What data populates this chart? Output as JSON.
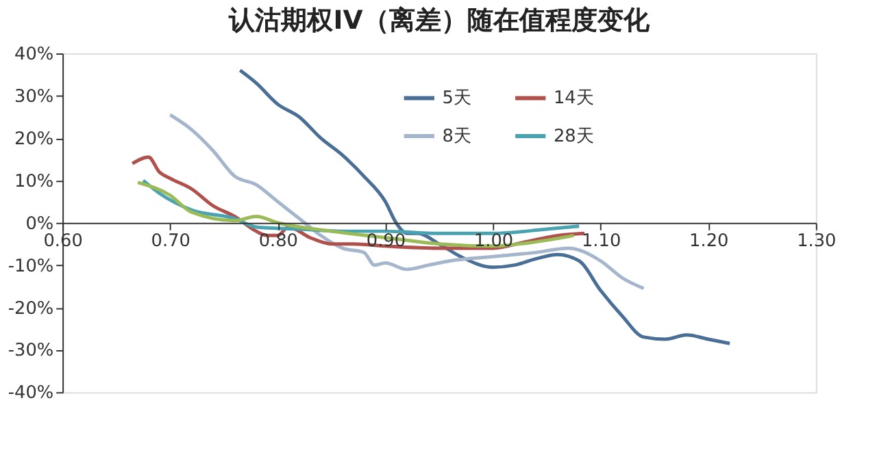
{
  "chart_data": {
    "type": "line",
    "title": "认沽期权IV（离差）随在值程度变化",
    "xlim": [
      0.6,
      1.3
    ],
    "xticks": [
      {
        "value": 0.6,
        "label": "0.60"
      },
      {
        "value": 0.7,
        "label": "0.70"
      },
      {
        "value": 0.8,
        "label": "0.80"
      },
      {
        "value": 0.9,
        "label": "0.90"
      },
      {
        "value": 1.0,
        "label": "1.00"
      },
      {
        "value": 1.1,
        "label": "1.10"
      },
      {
        "value": 1.2,
        "label": "1.20"
      },
      {
        "value": 1.3,
        "label": "1.30"
      }
    ],
    "ylim": [
      -40,
      40
    ],
    "yticks": [
      {
        "value": -40,
        "label": "-40%"
      },
      {
        "value": -30,
        "label": "-30%"
      },
      {
        "value": -20,
        "label": "-20%"
      },
      {
        "value": -10,
        "label": "-10%"
      },
      {
        "value": 0,
        "label": "0%"
      },
      {
        "value": 10,
        "label": "10%"
      },
      {
        "value": 20,
        "label": "20%"
      },
      {
        "value": 30,
        "label": "30%"
      },
      {
        "value": 40,
        "label": "40%"
      }
    ],
    "grid": false,
    "legend": "top",
    "marker": "none",
    "line_style": "solid",
    "series": [
      {
        "name": "5天",
        "color": "#4a6f96",
        "x": [
          0.765,
          0.78,
          0.8,
          0.82,
          0.84,
          0.86,
          0.88,
          0.9,
          0.91,
          0.92,
          0.93,
          0.95,
          0.97,
          1.0,
          1.02,
          1.04,
          1.06,
          1.08,
          1.1,
          1.12,
          1.14,
          1.16,
          1.18,
          1.2,
          1.22
        ],
        "values": [
          36,
          33,
          28,
          25,
          20,
          16,
          11,
          5,
          0,
          -2.5,
          -2.5,
          -5,
          -8,
          -10.5,
          -10,
          -8.5,
          -7.5,
          -9,
          -16,
          -22,
          -27,
          -27.5,
          -26.5,
          -27.5,
          -28.5
        ]
      },
      {
        "name": "8天",
        "color": "#a5b6cc",
        "x": [
          0.7,
          0.72,
          0.74,
          0.76,
          0.78,
          0.8,
          0.82,
          0.84,
          0.86,
          0.88,
          0.89,
          0.9,
          0.92,
          0.94,
          0.96,
          1.0,
          1.04,
          1.07,
          1.1,
          1.12,
          1.14
        ],
        "values": [
          25.5,
          22,
          17,
          11,
          9,
          5,
          1,
          -3,
          -6,
          -7,
          -10,
          -9.5,
          -11,
          -10,
          -9,
          -8,
          -7,
          -6,
          -9,
          -13,
          -15.5
        ]
      },
      {
        "name": "14天",
        "color": "#b0504c",
        "x": [
          0.665,
          0.68,
          0.69,
          0.7,
          0.72,
          0.74,
          0.76,
          0.78,
          0.79,
          0.8,
          0.81,
          0.83,
          0.85,
          0.87,
          0.9,
          0.95,
          1.0,
          1.03,
          1.06,
          1.085
        ],
        "values": [
          14,
          15.5,
          12,
          10.5,
          8,
          4,
          1.5,
          -2,
          -3,
          -3,
          -1,
          -3.5,
          -5,
          -5,
          -5.5,
          -6,
          -6,
          -4.5,
          -3,
          -2.5
        ]
      },
      {
        "name": "28天",
        "color": "#4aa3b0",
        "x": [
          0.675,
          0.69,
          0.72,
          0.76,
          0.78,
          0.82,
          0.86,
          0.9,
          0.95,
          1.0,
          1.05,
          1.08
        ],
        "values": [
          10,
          7,
          3,
          1,
          -1,
          -1.5,
          -2,
          -2,
          -2.5,
          -2.5,
          -1.5,
          -0.8
        ]
      },
      {
        "color": "#9bbb59",
        "x": [
          0.67,
          0.7,
          0.72,
          0.76,
          0.78,
          0.8,
          0.85,
          0.9,
          0.95,
          1.0,
          1.04,
          1.075
        ],
        "values": [
          9.5,
          6.5,
          2.5,
          0.5,
          1.5,
          0,
          -2,
          -3.5,
          -5,
          -5.5,
          -4.5,
          -3
        ]
      }
    ]
  }
}
